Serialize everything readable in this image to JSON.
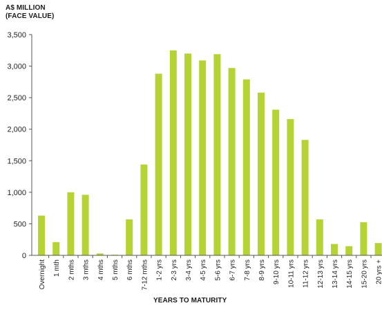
{
  "chart_data": {
    "type": "bar",
    "ylabel_lines": [
      "A$ MILLION",
      "(FACE VALUE)"
    ],
    "xlabel": "YEARS TO MATURITY",
    "categories": [
      "Overnight",
      "1 mth",
      "2 mths",
      "3 mths",
      "4 mths",
      "5 mths",
      "6 mths",
      "7-12 mths",
      "1-2 yrs",
      "2-3 yrs",
      "3-4 yrs",
      "4-5 yrs",
      "5-6 yrs",
      "6-7 yrs",
      "7-8 yrs",
      "8-9 yrs",
      "9-10 yrs",
      "10-11 yrs",
      "11-12 yrs",
      "12-13 yrs",
      "13-14 yrs",
      "14-15 yrs",
      "15-20 yrs",
      "20 yrs +"
    ],
    "values": [
      630,
      210,
      1000,
      960,
      30,
      10,
      570,
      1440,
      2880,
      3250,
      3200,
      3090,
      3190,
      2970,
      2790,
      2580,
      2310,
      2160,
      1830,
      570,
      180,
      145,
      525,
      195
    ],
    "ylim": [
      0,
      3500
    ],
    "yticks": [
      0,
      500,
      1000,
      1500,
      2000,
      2500,
      3000,
      3500
    ],
    "ytick_labels": [
      "0",
      "500",
      "1,000",
      "1,500",
      "2,000",
      "2,500",
      "3,000",
      "3,500"
    ],
    "bar_color": "#b5d334",
    "axis_color": "#555555",
    "grid": false,
    "legend": "none"
  }
}
